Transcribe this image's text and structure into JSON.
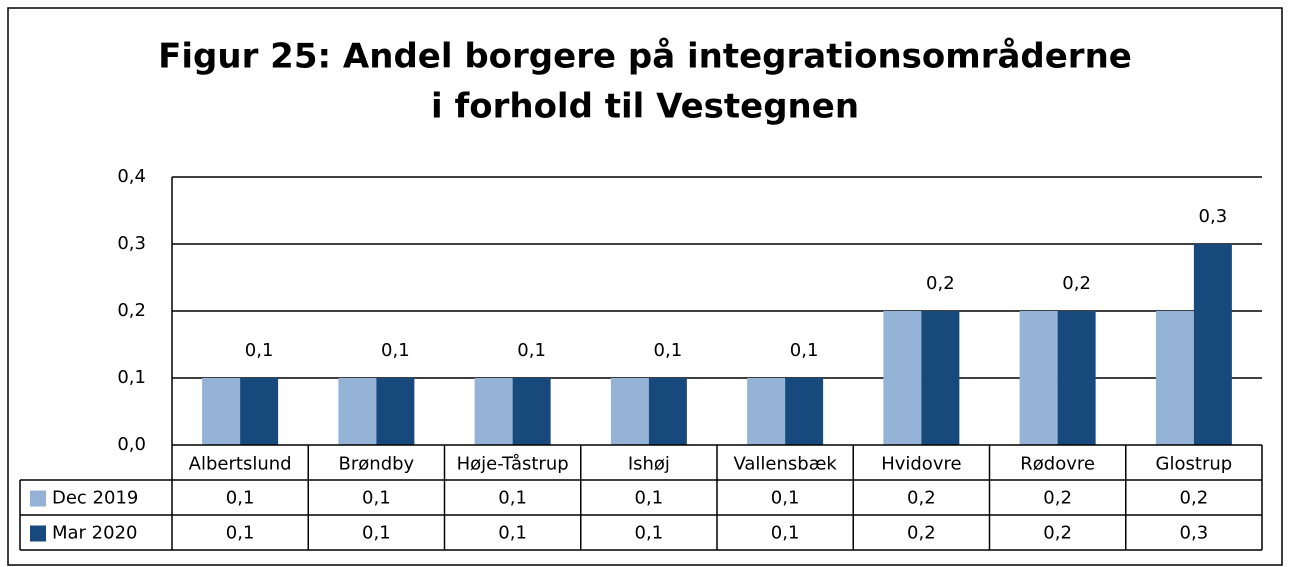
{
  "chart_data": {
    "type": "bar",
    "title": [
      "Figur 25: Andel borgere på integrationsområderne",
      "i forhold til Vestegnen"
    ],
    "categories": [
      "Albertslund",
      "Brøndby",
      "Høje-Tåstrup",
      "Ishøj",
      "Vallensbæk",
      "Hvidovre",
      "Rødovre",
      "Glostrup"
    ],
    "series": [
      {
        "name": "Dec 2019",
        "color": "#95b3d7",
        "values": [
          0.1,
          0.1,
          0.1,
          0.1,
          0.1,
          0.2,
          0.2,
          0.2
        ],
        "value_labels": [
          "0,1",
          "0,1",
          "0,1",
          "0,1",
          "0,1",
          "0,2",
          "0,2",
          "0,2"
        ]
      },
      {
        "name": "Mar 2020",
        "color": "#17497d",
        "values": [
          0.1,
          0.1,
          0.1,
          0.1,
          0.1,
          0.2,
          0.2,
          0.3
        ],
        "value_labels": [
          "0,1",
          "0,1",
          "0,1",
          "0,1",
          "0,1",
          "0,2",
          "0,2",
          "0,3"
        ]
      }
    ],
    "ylim": [
      0,
      0.4
    ],
    "yticks": [
      {
        "value": 0,
        "label": "0,0"
      },
      {
        "value": 0.1,
        "label": "0,1"
      },
      {
        "value": 0.2,
        "label": "0,2"
      },
      {
        "value": 0.3,
        "label": "0,3"
      },
      {
        "value": 0.4,
        "label": "0,4"
      }
    ],
    "grid": true,
    "data_labels_series": 1
  }
}
